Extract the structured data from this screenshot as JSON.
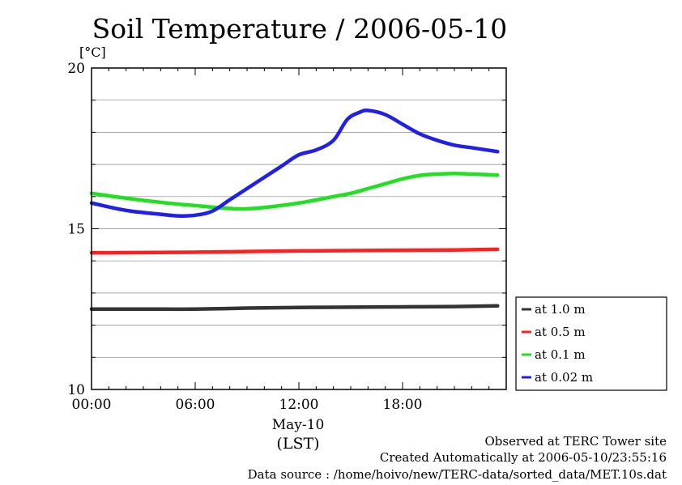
{
  "chart_data": {
    "type": "line",
    "title": "Soil Temperature / 2006-05-10",
    "unit": "[°C]",
    "y_range": [
      10,
      20
    ],
    "x_range": [
      0,
      24
    ],
    "y_ticks": [
      {
        "value": 10,
        "label": "10"
      },
      {
        "value": 15,
        "label": "15"
      },
      {
        "value": 20,
        "label": "20"
      }
    ],
    "x_ticks": [
      {
        "value": 0,
        "label": "00:00"
      },
      {
        "value": 6,
        "label": "06:00"
      },
      {
        "value": 12,
        "label": "12:00"
      },
      {
        "value": 18,
        "label": "18:00"
      }
    ],
    "x_date_label": "May-10",
    "x_axis_label": "(LST)",
    "grid": "horizontal",
    "legend_position": "right",
    "series": [
      {
        "name": "at 1.0 m",
        "color": "#333333",
        "points": [
          [
            0,
            12.5
          ],
          [
            3,
            12.5
          ],
          [
            6,
            12.5
          ],
          [
            9,
            12.53
          ],
          [
            12,
            12.55
          ],
          [
            15,
            12.56
          ],
          [
            18,
            12.57
          ],
          [
            21,
            12.58
          ],
          [
            23.5,
            12.6
          ]
        ]
      },
      {
        "name": "at 0.5 m",
        "color": "#ff2020",
        "points": [
          [
            0,
            14.25
          ],
          [
            3,
            14.26
          ],
          [
            6,
            14.27
          ],
          [
            9,
            14.29
          ],
          [
            12,
            14.31
          ],
          [
            15,
            14.32
          ],
          [
            18,
            14.33
          ],
          [
            21,
            14.34
          ],
          [
            23.5,
            14.36
          ]
        ]
      },
      {
        "name": "at 0.1 m",
        "color": "#20e020",
        "points": [
          [
            0,
            16.1
          ],
          [
            2,
            15.95
          ],
          [
            4,
            15.82
          ],
          [
            6,
            15.72
          ],
          [
            8,
            15.63
          ],
          [
            9,
            15.62
          ],
          [
            10,
            15.66
          ],
          [
            12,
            15.8
          ],
          [
            14,
            16.0
          ],
          [
            15,
            16.1
          ],
          [
            16,
            16.25
          ],
          [
            17,
            16.4
          ],
          [
            18,
            16.55
          ],
          [
            19,
            16.66
          ],
          [
            20,
            16.7
          ],
          [
            21,
            16.72
          ],
          [
            22,
            16.7
          ],
          [
            23.5,
            16.67
          ]
        ]
      },
      {
        "name": "at 0.02 m",
        "color": "#2020e8",
        "points": [
          [
            0,
            15.8
          ],
          [
            2,
            15.57
          ],
          [
            4,
            15.45
          ],
          [
            5,
            15.4
          ],
          [
            6,
            15.42
          ],
          [
            7,
            15.55
          ],
          [
            8,
            15.9
          ],
          [
            9,
            16.25
          ],
          [
            10,
            16.6
          ],
          [
            11,
            16.95
          ],
          [
            12,
            17.3
          ],
          [
            13,
            17.45
          ],
          [
            14,
            17.75
          ],
          [
            14.8,
            18.4
          ],
          [
            15.5,
            18.62
          ],
          [
            16,
            18.68
          ],
          [
            17,
            18.55
          ],
          [
            18,
            18.25
          ],
          [
            19,
            17.95
          ],
          [
            20,
            17.75
          ],
          [
            21,
            17.6
          ],
          [
            22,
            17.52
          ],
          [
            23.5,
            17.4
          ]
        ]
      }
    ]
  },
  "footer": {
    "line1": "Observed at TERC Tower site",
    "line2": "Created Automatically at 2006-05-10/23:55:16",
    "line3": "Data source : /home/hoivo/new/TERC-data/sorted_data/MET.10s.dat"
  }
}
